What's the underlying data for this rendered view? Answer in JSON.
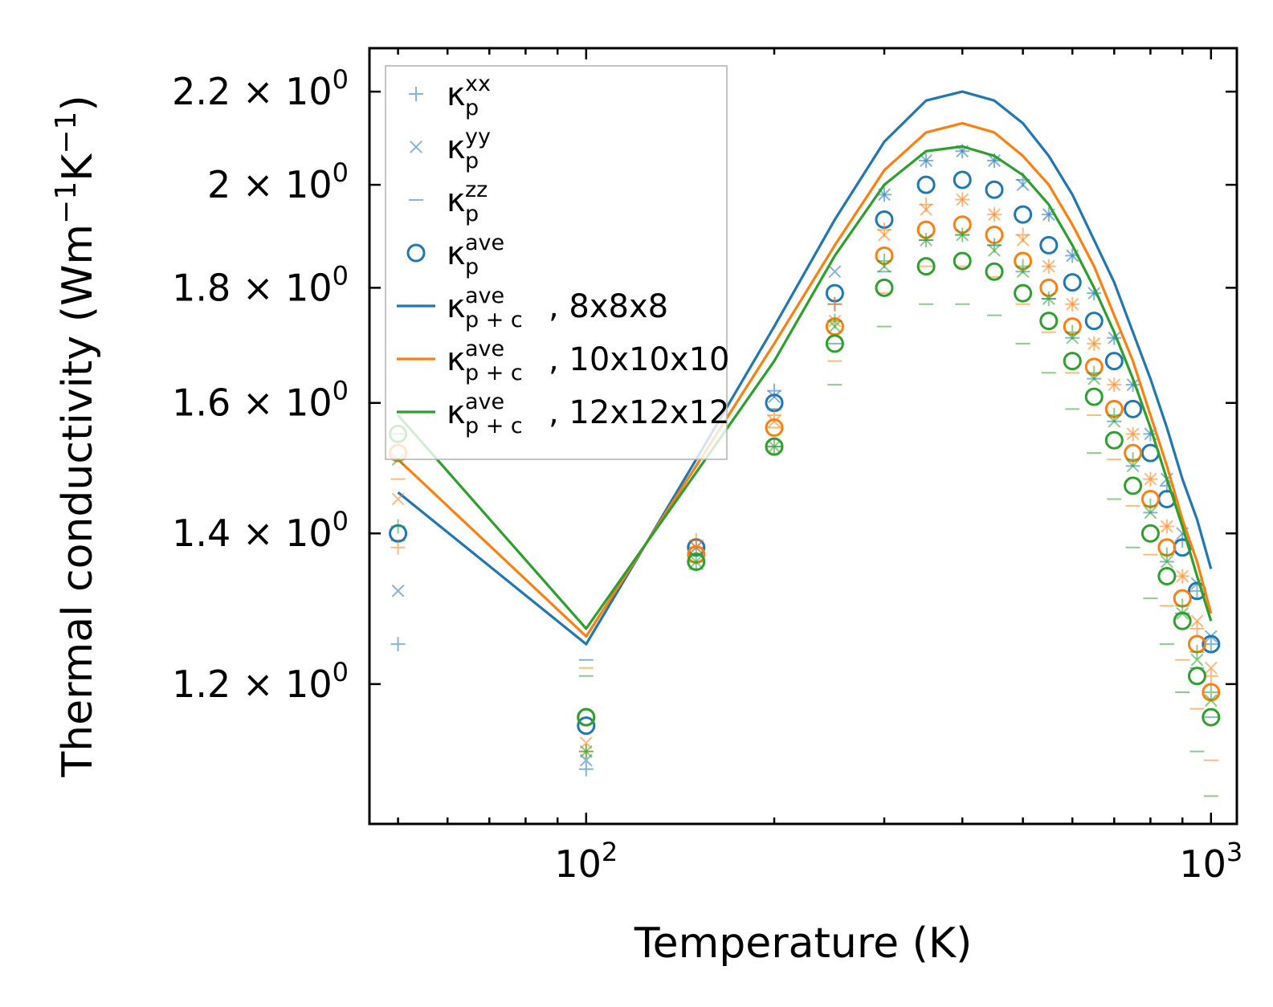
{
  "chart_data": {
    "type": "scatter+line",
    "xscale": "log",
    "yscale": "log",
    "xlabel": "Temperature (K)",
    "ylabel_main": "Thermal conductivity (Wm",
    "ylabel_sup1": "−1",
    "ylabel_mid": "K",
    "ylabel_sup2": "−1",
    "ylabel_end": ")",
    "xlim": [
      45,
      1100
    ],
    "ylim": [
      1.04,
      2.3
    ],
    "x_ticks": [
      {
        "value": 100,
        "base": "10",
        "exp": "2"
      },
      {
        "value": 1000,
        "base": "10",
        "exp": "3"
      }
    ],
    "y_ticks": [
      {
        "value": 1.2,
        "mant": "1.2",
        "base": "× 10",
        "exp": "0"
      },
      {
        "value": 1.4,
        "mant": "1.4",
        "base": "× 10",
        "exp": "0"
      },
      {
        "value": 1.6,
        "mant": "1.6",
        "base": "× 10",
        "exp": "0"
      },
      {
        "value": 1.8,
        "mant": "1.8",
        "base": "× 10",
        "exp": "0"
      },
      {
        "value": 2.0,
        "mant": "2",
        "base": "× 10",
        "exp": "0"
      },
      {
        "value": 2.2,
        "mant": "2.2",
        "base": "× 10",
        "exp": "0"
      }
    ],
    "x": [
      50,
      100,
      150,
      200,
      250,
      300,
      350,
      400,
      450,
      500,
      550,
      600,
      650,
      700,
      750,
      800,
      850,
      900,
      950,
      1000
    ],
    "colors": {
      "blue": "#1f77b4",
      "orange": "#ff7f0e",
      "green": "#2ca02c"
    },
    "grids": [
      {
        "name": "8x8x8",
        "color": "#1f77b4",
        "k_xx": [
          1.25,
          1.1,
          1.38,
          1.62,
          1.77,
          1.98,
          2.05,
          2.07,
          2.05,
          2.01,
          1.94,
          1.86,
          1.79,
          1.71,
          1.63,
          1.55,
          1.47,
          1.39,
          1.32,
          1.25
        ],
        "k_yy": [
          1.32,
          1.11,
          1.38,
          1.61,
          1.83,
          1.98,
          2.05,
          2.07,
          2.05,
          2.0,
          1.94,
          1.86,
          1.79,
          1.71,
          1.63,
          1.55,
          1.48,
          1.4,
          1.33,
          1.26
        ],
        "k_zz": [
          1.39,
          1.23,
          1.37,
          1.59,
          1.7,
          1.83,
          1.89,
          1.9,
          1.88,
          1.83,
          1.78,
          1.71,
          1.64,
          1.57,
          1.5,
          1.43,
          1.36,
          1.29,
          1.22,
          1.16
        ],
        "k_ave": [
          1.4,
          1.15,
          1.38,
          1.6,
          1.79,
          1.93,
          2.0,
          2.01,
          1.99,
          1.94,
          1.88,
          1.81,
          1.74,
          1.67,
          1.59,
          1.52,
          1.45,
          1.38,
          1.32,
          1.25
        ],
        "k_pc": [
          1.46,
          1.25,
          1.51,
          1.73,
          1.93,
          2.09,
          2.18,
          2.2,
          2.18,
          2.13,
          2.06,
          1.98,
          1.89,
          1.81,
          1.72,
          1.64,
          1.56,
          1.48,
          1.42,
          1.35
        ]
      },
      {
        "name": "10x10x10",
        "color": "#ff7f0e",
        "k_xx": [
          1.38,
          1.12,
          1.39,
          1.58,
          1.77,
          1.91,
          1.96,
          1.97,
          1.94,
          1.9,
          1.84,
          1.77,
          1.7,
          1.63,
          1.55,
          1.48,
          1.41,
          1.34,
          1.27,
          1.21
        ],
        "k_yy": [
          1.45,
          1.13,
          1.38,
          1.57,
          1.74,
          1.9,
          1.95,
          1.97,
          1.94,
          1.89,
          1.84,
          1.77,
          1.7,
          1.63,
          1.55,
          1.48,
          1.41,
          1.34,
          1.28,
          1.22
        ],
        "k_zz": [
          1.48,
          1.22,
          1.37,
          1.56,
          1.67,
          1.79,
          1.84,
          1.84,
          1.82,
          1.77,
          1.72,
          1.65,
          1.58,
          1.51,
          1.44,
          1.37,
          1.3,
          1.23,
          1.17,
          1.11
        ],
        "k_ave": [
          1.52,
          1.16,
          1.37,
          1.56,
          1.73,
          1.86,
          1.91,
          1.92,
          1.9,
          1.85,
          1.8,
          1.73,
          1.66,
          1.59,
          1.52,
          1.45,
          1.38,
          1.31,
          1.25,
          1.19
        ],
        "k_pc": [
          1.51,
          1.26,
          1.5,
          1.7,
          1.88,
          2.03,
          2.11,
          2.13,
          2.11,
          2.06,
          2.0,
          1.92,
          1.84,
          1.75,
          1.67,
          1.58,
          1.5,
          1.42,
          1.36,
          1.29
        ]
      },
      {
        "name": "12x12x12",
        "color": "#2ca02c",
        "k_xx": [
          1.41,
          1.12,
          1.36,
          1.53,
          1.74,
          1.85,
          1.89,
          1.9,
          1.88,
          1.84,
          1.78,
          1.72,
          1.65,
          1.58,
          1.51,
          1.44,
          1.37,
          1.3,
          1.24,
          1.19
        ],
        "k_yy": [
          1.51,
          1.12,
          1.36,
          1.53,
          1.73,
          1.84,
          1.89,
          1.9,
          1.87,
          1.83,
          1.78,
          1.71,
          1.64,
          1.57,
          1.5,
          1.43,
          1.36,
          1.29,
          1.23,
          1.18
        ],
        "k_zz": [
          1.55,
          1.21,
          1.35,
          1.53,
          1.63,
          1.73,
          1.77,
          1.77,
          1.75,
          1.7,
          1.65,
          1.59,
          1.52,
          1.45,
          1.38,
          1.31,
          1.25,
          1.19,
          1.12,
          1.07
        ],
        "k_ave": [
          1.55,
          1.16,
          1.36,
          1.53,
          1.7,
          1.8,
          1.84,
          1.85,
          1.83,
          1.79,
          1.74,
          1.67,
          1.61,
          1.54,
          1.47,
          1.4,
          1.34,
          1.28,
          1.21,
          1.16
        ],
        "k_pc": [
          1.58,
          1.27,
          1.49,
          1.67,
          1.86,
          2.0,
          2.07,
          2.08,
          2.06,
          2.02,
          1.96,
          1.88,
          1.8,
          1.72,
          1.64,
          1.56,
          1.48,
          1.41,
          1.34,
          1.28
        ]
      }
    ],
    "legend": {
      "position": "upper-left",
      "entries": [
        {
          "marker": "plus",
          "base": "κ",
          "sup": "xx",
          "sub": "p",
          "suffix": ""
        },
        {
          "marker": "cross",
          "base": "κ",
          "sup": "yy",
          "sub": "p",
          "suffix": ""
        },
        {
          "marker": "dash",
          "base": "κ",
          "sup": "zz",
          "sub": "p",
          "suffix": ""
        },
        {
          "marker": "circle",
          "base": "κ",
          "sup": "ave",
          "sub": "p",
          "suffix": ""
        },
        {
          "marker": "line-blue",
          "base": "κ",
          "sup": "ave",
          "sub": "p + c",
          "suffix": ", 8x8x8"
        },
        {
          "marker": "line-orange",
          "base": "κ",
          "sup": "ave",
          "sub": "p + c",
          "suffix": ", 10x10x10"
        },
        {
          "marker": "line-green",
          "base": "κ",
          "sup": "ave",
          "sub": "p + c",
          "suffix": ", 12x12x12"
        }
      ]
    }
  }
}
